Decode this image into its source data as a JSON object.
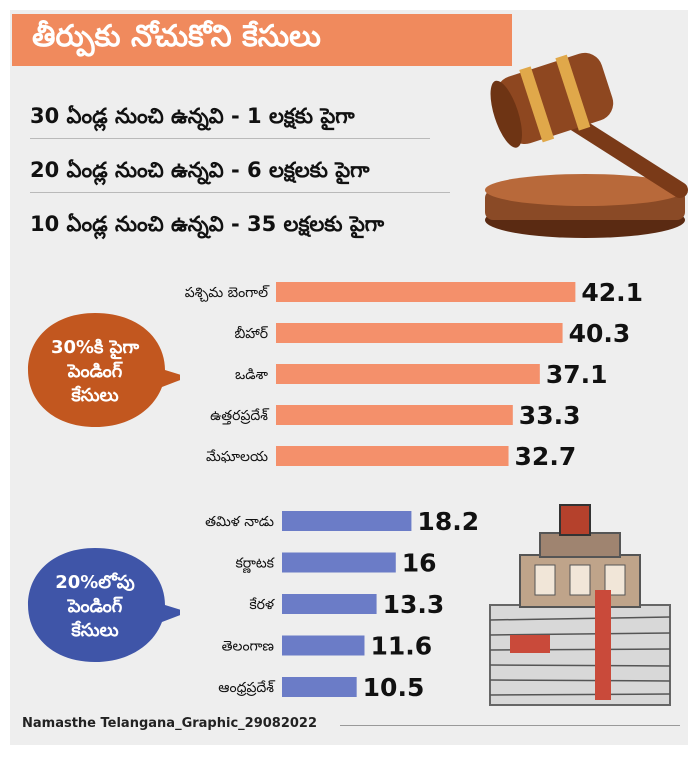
{
  "header": {
    "title": "తీర్పుకు నోచుకోని కేసులు",
    "stats": [
      "30 ఏండ్ల నుంచి ఉన్నవి - 1 లక్షకు పైగా",
      "20 ఏండ్ల నుంచి ఉన్నవి - 6 లక్షలకు పైగా",
      "10 ఏండ్ల నుంచి ఉన్నవి - 35 లక్షలకు పైగా"
    ]
  },
  "callouts": {
    "high": [
      "30%కి పైగా",
      "పెండింగ్",
      "కేసులు"
    ],
    "low": [
      "20%లోపు",
      "పెండింగ్",
      "కేసులు"
    ]
  },
  "footer": {
    "credit": "Namasthe Telangana_Graphic_29082022"
  },
  "colors": {
    "high": "#f4906b",
    "low": "#6b7cc7",
    "title_bg": "#f08a5d",
    "high_bubble": "#c2571f",
    "low_bubble": "#3f55a8"
  },
  "icons": {
    "gavel": "gavel-icon",
    "papers": "pending-files-icon"
  },
  "chart_data": [
    {
      "type": "bar",
      "orientation": "horizontal",
      "categories": [
        "పశ్చిమ బెంగాల్",
        "బీహార్",
        "ఒడిశా",
        "ఉత్తరప్రదేశ్",
        "మేఘాలయ"
      ],
      "values": [
        42.1,
        40.3,
        37.1,
        33.3,
        32.7
      ],
      "value_labels": [
        "42.1",
        "40.3",
        "37.1",
        "33.3",
        "32.7"
      ],
      "xlim": [
        0,
        45
      ],
      "grid": false
    },
    {
      "type": "bar",
      "orientation": "horizontal",
      "categories": [
        "తమిళ నాడు",
        "కర్ణాటక",
        "కేరళ",
        "తెలంగాణ",
        "ఆంధ్రప్రదేశ్"
      ],
      "values": [
        18.2,
        16,
        13.3,
        11.6,
        10.5
      ],
      "value_labels": [
        "18.2",
        "16",
        "13.3",
        "11.6",
        "10.5"
      ],
      "xlim": [
        0,
        45
      ],
      "grid": false
    }
  ]
}
